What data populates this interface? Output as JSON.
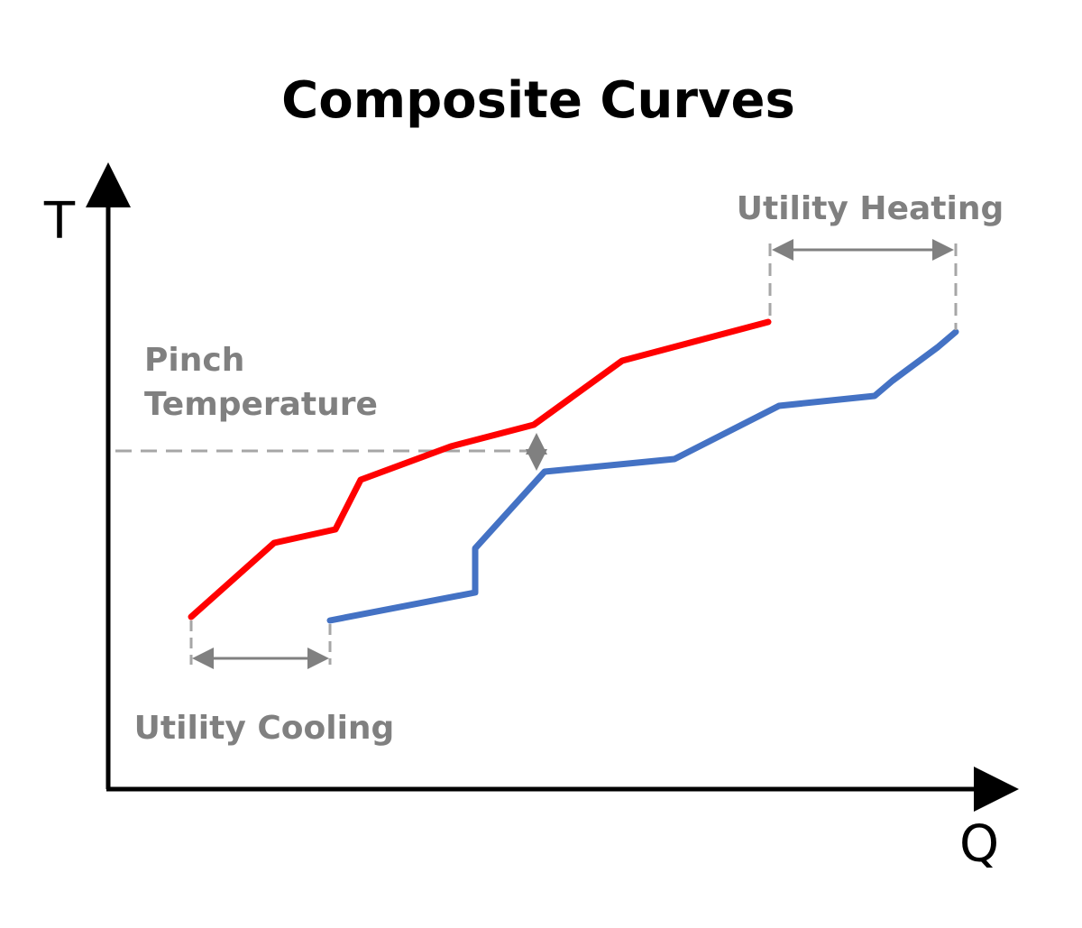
{
  "title": "Composite Curves",
  "axes": {
    "y_label": "T",
    "x_label": "Q"
  },
  "annotations": {
    "pinch_line1": "Pinch",
    "pinch_line2": "Temperature",
    "utility_heating": "Utility Heating",
    "utility_cooling": "Utility Cooling"
  },
  "colors": {
    "hot_curve": "#ff0000",
    "cold_curve": "#4472c4",
    "annotation": "#808080",
    "axis": "#000000"
  }
}
